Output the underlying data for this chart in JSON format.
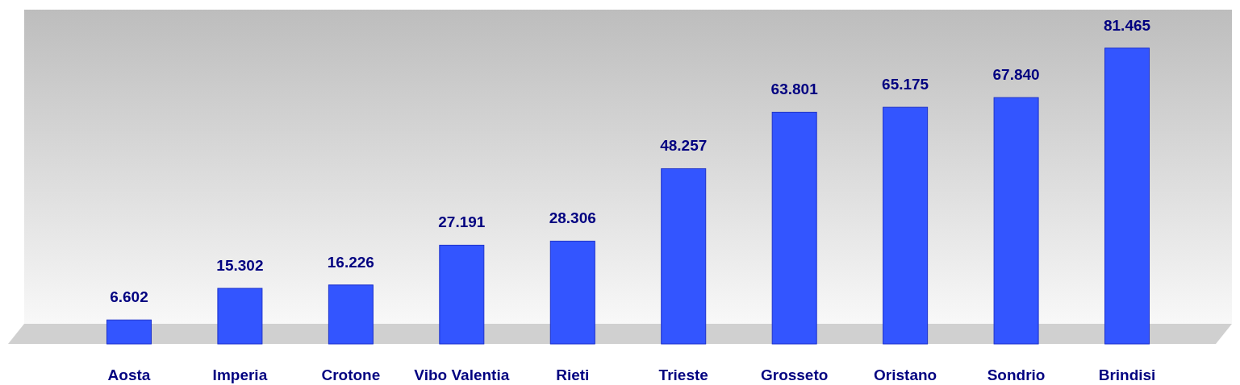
{
  "chart_data": {
    "type": "bar",
    "categories": [
      "Aosta",
      "Imperia",
      "Crotone",
      "Vibo Valentia",
      "Rieti",
      "Trieste",
      "Grosseto",
      "Oristano",
      "Sondrio",
      "Brindisi"
    ],
    "values": [
      6602,
      15302,
      16226,
      27191,
      28306,
      48257,
      63801,
      65175,
      67840,
      81465
    ],
    "value_labels": [
      "6.602",
      "15.302",
      "16.226",
      "27.191",
      "28.306",
      "48.257",
      "63.801",
      "65.175",
      "67.840",
      "81.465"
    ],
    "color": "#3355ff"
  }
}
